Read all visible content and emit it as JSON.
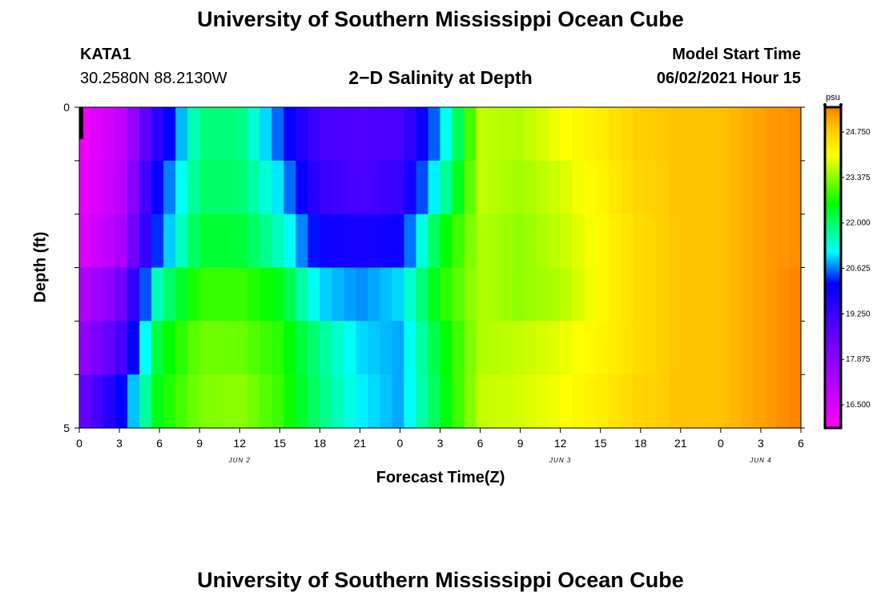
{
  "header": {
    "title_top": "University of Southern Mississippi Ocean Cube",
    "title_bottom": "University of Southern Mississippi Ocean Cube",
    "station_id": "KATA1",
    "station_coords": "30.2580N  88.2130W",
    "model_start_label": "Model Start Time",
    "model_start_value": "06/02/2021 Hour 15"
  },
  "chart_data": {
    "type": "heatmap",
    "title": "2−D Salinity at Depth",
    "xlabel": "Forecast Time(Z)",
    "ylabel": "Depth (ft)",
    "ylim": [
      0,
      5
    ],
    "y_tick_labels": [
      "0",
      "5"
    ],
    "x_tick_labels": [
      "0",
      "3",
      "6",
      "9",
      "12",
      "15",
      "18",
      "21",
      "0",
      "3",
      "6",
      "9",
      "12",
      "15",
      "18",
      "21",
      "0",
      "3",
      "6"
    ],
    "date_labels": [
      "JUN 2",
      "JUN 3",
      "JUN 4"
    ],
    "colorbar": {
      "unit": "psu",
      "min": 15.8,
      "max": 25.5,
      "ticks": [
        "16.500",
        "17.875",
        "19.250",
        "20.625",
        "22.000",
        "23.375",
        "24.750"
      ]
    },
    "x_hours": [
      0,
      3,
      6,
      9,
      12,
      15,
      18,
      21,
      24,
      27,
      30,
      33,
      36,
      39,
      42,
      45,
      48,
      51,
      54
    ],
    "depth_rows": [
      {
        "depth": 0,
        "values": [
          16.0,
          16.8,
          19.6,
          21.9,
          21.9,
          20.5,
          19.0,
          18.9,
          19.0,
          20.8,
          23.7,
          23.6,
          24.0,
          24.3,
          24.8,
          24.9,
          24.9,
          25.2,
          25.4
        ]
      },
      {
        "depth": 1,
        "values": [
          16.1,
          16.9,
          20.2,
          22.0,
          22.0,
          21.0,
          19.3,
          19.0,
          19.3,
          21.4,
          23.7,
          23.5,
          23.8,
          24.2,
          24.7,
          24.9,
          24.9,
          25.2,
          25.4
        ]
      },
      {
        "depth": 2,
        "values": [
          16.3,
          17.2,
          20.5,
          22.3,
          22.3,
          21.5,
          20.0,
          19.8,
          20.0,
          22.4,
          23.6,
          23.4,
          23.7,
          24.1,
          24.6,
          24.9,
          24.9,
          25.2,
          25.4
        ]
      },
      {
        "depth": 3,
        "values": [
          17.0,
          18.2,
          21.7,
          22.9,
          22.9,
          22.5,
          21.0,
          20.7,
          21.0,
          22.7,
          23.6,
          23.4,
          23.6,
          24.1,
          24.6,
          24.9,
          24.9,
          25.2,
          25.5
        ]
      },
      {
        "depth": 4,
        "values": [
          17.6,
          18.9,
          22.4,
          23.2,
          23.2,
          22.8,
          21.8,
          21.0,
          20.8,
          22.4,
          23.6,
          23.7,
          23.9,
          24.2,
          24.6,
          24.9,
          24.9,
          25.2,
          25.5
        ]
      },
      {
        "depth": 5,
        "values": [
          18.3,
          20.0,
          22.6,
          23.3,
          23.4,
          22.9,
          21.9,
          21.1,
          20.8,
          22.3,
          23.7,
          23.8,
          24.0,
          24.3,
          24.7,
          24.9,
          24.9,
          25.2,
          25.5
        ]
      }
    ]
  }
}
